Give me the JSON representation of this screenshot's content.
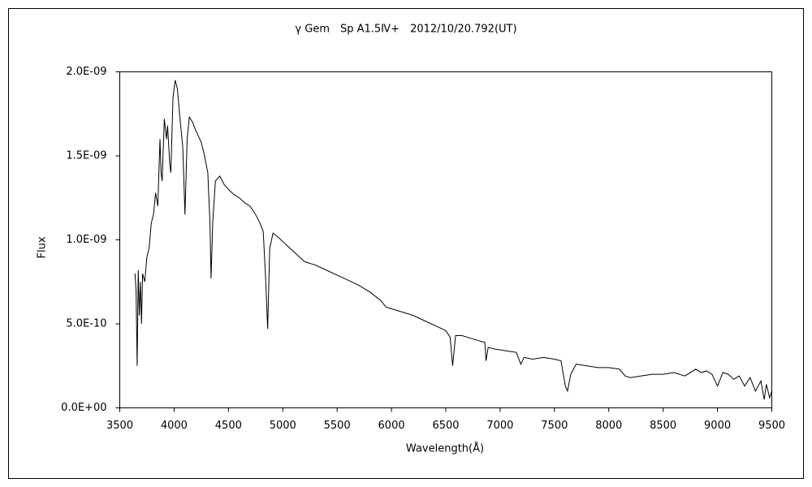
{
  "chart_data": {
    "type": "line",
    "title": "γ Gem　Sp A1.5Ⅳ+　2012/10/20.792(UT)",
    "x_label": "Wavelength(Å)",
    "y_label": "Flux",
    "color": "#000000",
    "xlim": [
      3500,
      9500
    ],
    "xticks": [
      3500,
      4000,
      4500,
      5000,
      5500,
      6000,
      6500,
      7000,
      7500,
      8000,
      8500,
      9000,
      9500
    ],
    "ylim": [
      0,
      2e-09
    ],
    "yticks": [
      {
        "value": 0,
        "label": "0.0E+00"
      },
      {
        "value": 5e-10,
        "label": "5.0E-10"
      },
      {
        "value": 1e-09,
        "label": "1.0E-09"
      },
      {
        "value": 1.5e-09,
        "label": "1.5E-09"
      },
      {
        "value": 2e-09,
        "label": "2.0E-09"
      }
    ],
    "grid": false,
    "x": [
      3640,
      3650,
      3660,
      3670,
      3680,
      3690,
      3700,
      3710,
      3730,
      3750,
      3770,
      3790,
      3810,
      3830,
      3850,
      3870,
      3880,
      3890,
      3910,
      3930,
      3940,
      3960,
      3970,
      3990,
      4010,
      4030,
      4050,
      4080,
      4100,
      4120,
      4140,
      4170,
      4200,
      4250,
      4280,
      4310,
      4330,
      4340,
      4355,
      4380,
      4420,
      4460,
      4500,
      4550,
      4600,
      4650,
      4700,
      4750,
      4790,
      4820,
      4840,
      4861,
      4880,
      4910,
      4950,
      5000,
      5050,
      5100,
      5150,
      5200,
      5300,
      5400,
      5500,
      5600,
      5700,
      5800,
      5900,
      5950,
      6000,
      6100,
      6200,
      6300,
      6400,
      6500,
      6540,
      6563,
      6590,
      6650,
      6700,
      6800,
      6860,
      6870,
      6890,
      6950,
      7050,
      7150,
      7190,
      7220,
      7300,
      7400,
      7500,
      7560,
      7600,
      7620,
      7650,
      7700,
      7800,
      7900,
      8000,
      8100,
      8150,
      8200,
      8300,
      8400,
      8500,
      8600,
      8700,
      8800,
      8850,
      8900,
      8950,
      9000,
      9050,
      9100,
      9150,
      9200,
      9250,
      9300,
      9350,
      9400,
      9430,
      9450,
      9480,
      9500
    ],
    "values": [
      8e-10,
      7e-10,
      2.5e-10,
      8.2e-10,
      5.5e-10,
      7.5e-10,
      5e-10,
      8e-10,
      7.5e-10,
      9e-10,
      9.5e-10,
      1.1e-09,
      1.15e-09,
      1.28e-09,
      1.2e-09,
      1.6e-09,
      1.4e-09,
      1.35e-09,
      1.72e-09,
      1.6e-09,
      1.68e-09,
      1.45e-09,
      1.4e-09,
      1.85e-09,
      1.95e-09,
      1.9e-09,
      1.75e-09,
      1.55e-09,
      1.15e-09,
      1.6e-09,
      1.73e-09,
      1.7e-09,
      1.65e-09,
      1.58e-09,
      1.5e-09,
      1.4e-09,
      1.1e-09,
      7.7e-10,
      1.1e-09,
      1.35e-09,
      1.38e-09,
      1.33e-09,
      1.3e-09,
      1.27e-09,
      1.25e-09,
      1.22e-09,
      1.2e-09,
      1.15e-09,
      1.1e-09,
      1.05e-09,
      8e-10,
      4.7e-10,
      9.5e-10,
      1.04e-09,
      1.02e-09,
      9.9e-10,
      9.6e-10,
      9.3e-10,
      9e-10,
      8.7e-10,
      8.5e-10,
      8.2e-10,
      7.9e-10,
      7.6e-10,
      7.3e-10,
      6.9e-10,
      6.4e-10,
      6e-10,
      5.9e-10,
      5.7e-10,
      5.5e-10,
      5.2e-10,
      4.9e-10,
      4.6e-10,
      4.2e-10,
      2.5e-10,
      4.3e-10,
      4.3e-10,
      4.2e-10,
      4e-10,
      3.9e-10,
      2.8e-10,
      3.6e-10,
      3.5e-10,
      3.4e-10,
      3.3e-10,
      2.6e-10,
      3e-10,
      2.9e-10,
      3e-10,
      2.9e-10,
      2.8e-10,
      1.3e-10,
      1e-10,
      2e-10,
      2.6e-10,
      2.5e-10,
      2.4e-10,
      2.4e-10,
      2.3e-10,
      1.9e-10,
      1.8e-10,
      1.9e-10,
      2e-10,
      2e-10,
      2.1e-10,
      1.9e-10,
      2.3e-10,
      2.1e-10,
      2.2e-10,
      2e-10,
      1.3e-10,
      2.1e-10,
      2e-10,
      1.7e-10,
      1.9e-10,
      1.3e-10,
      1.8e-10,
      1e-10,
      1.6e-10,
      5e-11,
      1.4e-10,
      6e-11,
      1e-10
    ]
  }
}
